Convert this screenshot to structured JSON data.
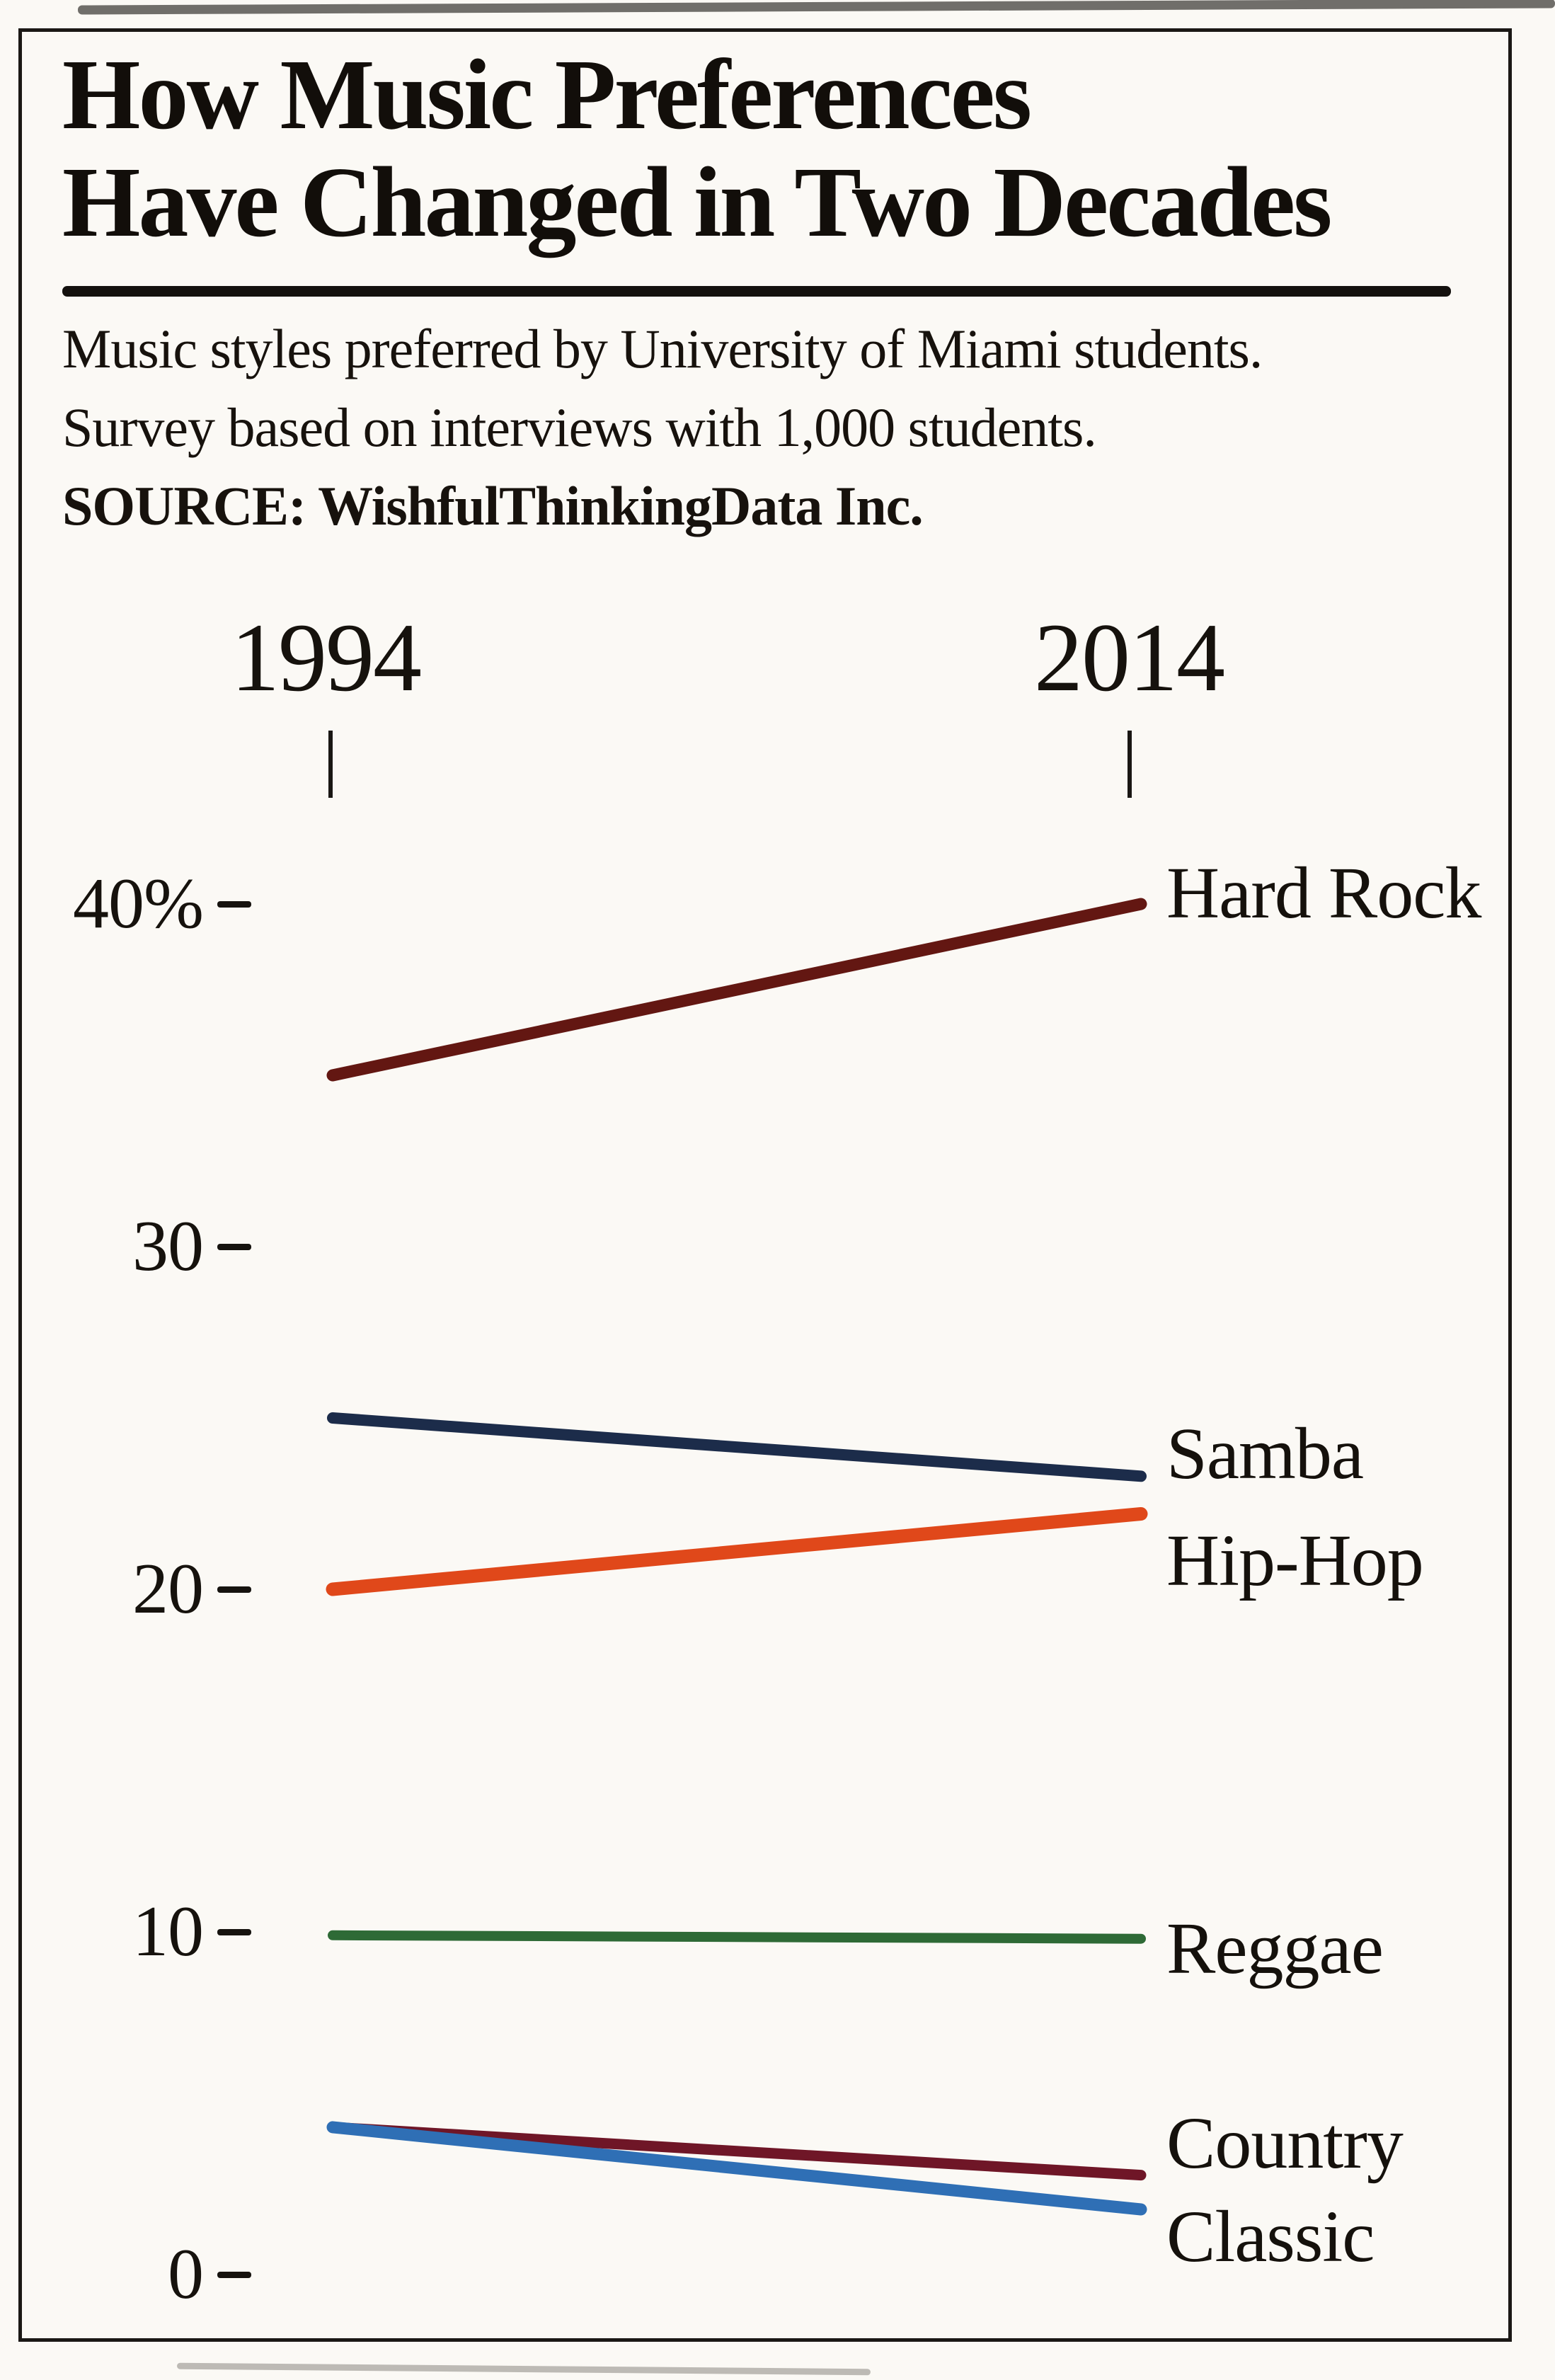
{
  "header": {
    "title_line1": "How Music Preferences",
    "title_line2": "Have Changed in Two Decades",
    "subtitle_line1": "Music styles preferred by University of Miami students.",
    "subtitle_line2": "Survey based on interviews with 1,000 students.",
    "source": "SOURCE: WishfulThinkingData Inc."
  },
  "chart_data": {
    "type": "line",
    "variant": "slopegraph",
    "title": "How Music Preferences Have Changed in Two Decades",
    "x_categories": [
      "1994",
      "2014"
    ],
    "series": [
      {
        "name": "Hard Rock",
        "values": [
          35,
          40
        ],
        "color": "#631712"
      },
      {
        "name": "Samba",
        "values": [
          25,
          23.3
        ],
        "color": "#1c2c4a"
      },
      {
        "name": "Hip-Hop",
        "values": [
          20,
          22.2
        ],
        "color": "#e0481a"
      },
      {
        "name": "Reggae",
        "values": [
          9.9,
          9.8
        ],
        "color": "#2e6a36"
      },
      {
        "name": "Country",
        "values": [
          4.3,
          2.9
        ],
        "color": "#6f1627"
      },
      {
        "name": "Classic",
        "values": [
          4.3,
          1.9
        ],
        "color": "#2f6fb5"
      }
    ],
    "unit": "%",
    "y_ticks": [
      "40%",
      "30",
      "20",
      "10",
      "0"
    ],
    "y_tick_values": [
      40,
      30,
      20,
      10,
      0
    ],
    "ylim": [
      0,
      43
    ],
    "grid": false,
    "legend_position": "right-inline-labels"
  }
}
